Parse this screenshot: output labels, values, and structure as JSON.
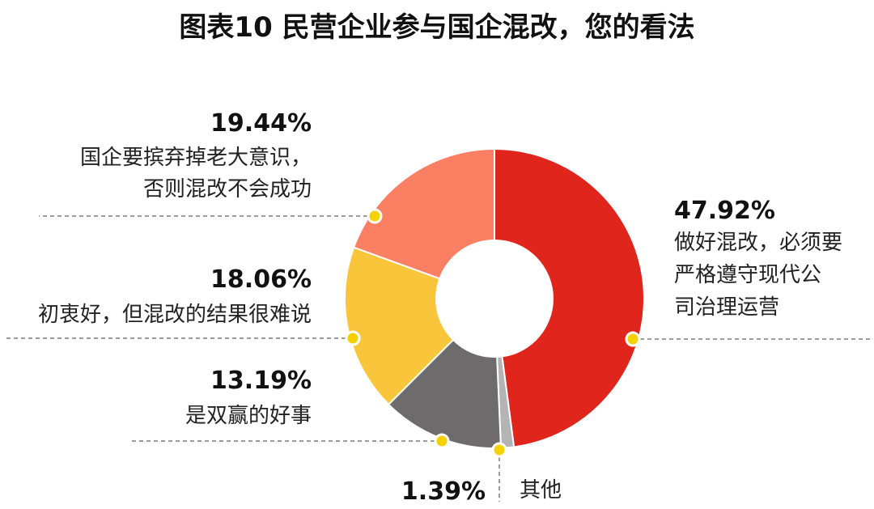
{
  "chart_data": {
    "type": "pie",
    "title": "图表10  民营企业参与国企混改，您的看法",
    "donut": true,
    "slices": [
      {
        "value": 47.92,
        "value_label": "47.92%",
        "label_lines": [
          "做好混改，必须要",
          "严格遵守现代公",
          "司治理运营"
        ],
        "color": "#e0261c"
      },
      {
        "value": 1.39,
        "value_label": "1.39%",
        "label_lines": [
          "其他"
        ],
        "color": "#b4b4b4"
      },
      {
        "value": 13.19,
        "value_label": "13.19%",
        "label_lines": [
          "是双赢的好事"
        ],
        "color": "#6d6b6c"
      },
      {
        "value": 18.06,
        "value_label": "18.06%",
        "label_lines": [
          "初衷好，但混改的结果很难说"
        ],
        "color": "#f9c53a"
      },
      {
        "value": 19.44,
        "value_label": "19.44%",
        "label_lines": [
          "国企要摈弃掉老大意识，",
          "否则混改不会成功"
        ],
        "color": "#fa7f63"
      }
    ],
    "marker_color": "#f6d100",
    "leader_line_color": "#7a7a7a"
  }
}
